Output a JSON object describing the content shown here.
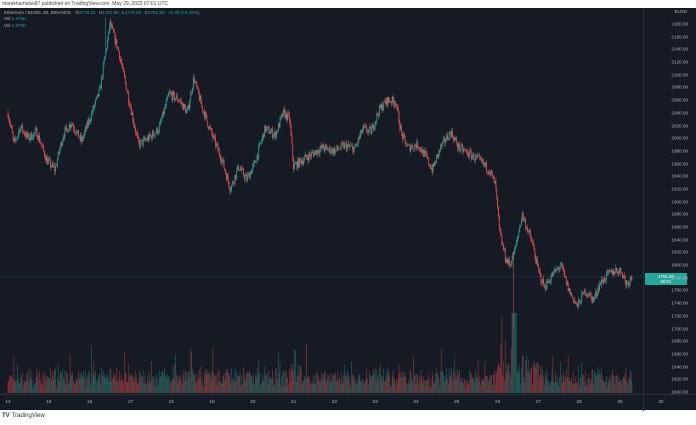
{
  "attribution": "marekhamwan87 published on TradingView.com, May 29, 2022 07:01 UTC",
  "legend": {
    "symbol": "Ethereum / BUSD, 30, BINANCE",
    "open_label": "O",
    "open": "1778.31",
    "high_label": "H",
    "high": "1781.50",
    "low_label": "L",
    "low": "1776.63",
    "close_label": "C",
    "close": "1781.50",
    "change": "+1.30 (+0.15%)",
    "vol1_label": "Vol",
    "vol1": "1.376K",
    "vol2_label": "Vol",
    "vol2": "1.376K"
  },
  "price_axis": {
    "currency": "BUSD",
    "current_price": "1781.50",
    "countdown": "00:01"
  },
  "footer": {
    "logo_mark": "TV",
    "logo_text": "TradingView"
  },
  "colors": {
    "background": "#161a25",
    "up": "#26a69a",
    "down": "#ef5350",
    "text": "#b2b5be",
    "grid": "#2a2e39"
  },
  "chart_data": {
    "type": "candlestick",
    "title": "Ethereum / BUSD, 30, BINANCE",
    "xlabel": "Day (May 2022)",
    "ylabel": "BUSD",
    "interval": "30m",
    "x_ticks": [
      "14",
      "15",
      "16",
      "17",
      "18",
      "19",
      "20",
      "21",
      "22",
      "23",
      "24",
      "25",
      "26",
      "27",
      "28",
      "29",
      "30"
    ],
    "y_ticks": [
      2180,
      2160,
      2140,
      2120,
      2100,
      2080,
      2060,
      2040,
      2020,
      2000,
      1980,
      1960,
      1940,
      1920,
      1900,
      1880,
      1860,
      1840,
      1820,
      1800,
      1780,
      1760,
      1740,
      1720,
      1700,
      1680,
      1660,
      1640,
      1620,
      1600
    ],
    "ylim": [
      1592,
      2196
    ],
    "last_price": 1781.5,
    "close_path_keypoints": [
      {
        "day": 14.0,
        "price": 2040
      },
      {
        "day": 14.15,
        "price": 1990
      },
      {
        "day": 14.3,
        "price": 2018
      },
      {
        "day": 14.5,
        "price": 2000
      },
      {
        "day": 14.7,
        "price": 2010
      },
      {
        "day": 14.95,
        "price": 1965
      },
      {
        "day": 15.15,
        "price": 1950
      },
      {
        "day": 15.35,
        "price": 2005
      },
      {
        "day": 15.55,
        "price": 2025
      },
      {
        "day": 15.8,
        "price": 1995
      },
      {
        "day": 16.0,
        "price": 2030
      },
      {
        "day": 16.25,
        "price": 2075
      },
      {
        "day": 16.5,
        "price": 2180
      },
      {
        "day": 16.7,
        "price": 2140
      },
      {
        "day": 16.95,
        "price": 2065
      },
      {
        "day": 17.2,
        "price": 1990
      },
      {
        "day": 17.45,
        "price": 2000
      },
      {
        "day": 17.7,
        "price": 2015
      },
      {
        "day": 17.95,
        "price": 2070
      },
      {
        "day": 18.2,
        "price": 2060
      },
      {
        "day": 18.4,
        "price": 2040
      },
      {
        "day": 18.55,
        "price": 2095
      },
      {
        "day": 18.75,
        "price": 2050
      },
      {
        "day": 19.0,
        "price": 2005
      },
      {
        "day": 19.25,
        "price": 1965
      },
      {
        "day": 19.45,
        "price": 1920
      },
      {
        "day": 19.65,
        "price": 1955
      },
      {
        "day": 19.85,
        "price": 1935
      },
      {
        "day": 20.05,
        "price": 1960
      },
      {
        "day": 20.3,
        "price": 2015
      },
      {
        "day": 20.55,
        "price": 2005
      },
      {
        "day": 20.75,
        "price": 2040
      },
      {
        "day": 20.9,
        "price": 2030
      },
      {
        "day": 21.0,
        "price": 1955
      },
      {
        "day": 21.2,
        "price": 1965
      },
      {
        "day": 21.45,
        "price": 1975
      },
      {
        "day": 21.7,
        "price": 1985
      },
      {
        "day": 22.0,
        "price": 1980
      },
      {
        "day": 22.25,
        "price": 1988
      },
      {
        "day": 22.5,
        "price": 1983
      },
      {
        "day": 22.7,
        "price": 2015
      },
      {
        "day": 22.9,
        "price": 2010
      },
      {
        "day": 23.1,
        "price": 2045
      },
      {
        "day": 23.3,
        "price": 2060
      },
      {
        "day": 23.5,
        "price": 2058
      },
      {
        "day": 23.65,
        "price": 2005
      },
      {
        "day": 23.8,
        "price": 1985
      },
      {
        "day": 24.05,
        "price": 1990
      },
      {
        "day": 24.25,
        "price": 1970
      },
      {
        "day": 24.4,
        "price": 1950
      },
      {
        "day": 24.6,
        "price": 1985
      },
      {
        "day": 24.85,
        "price": 2010
      },
      {
        "day": 25.05,
        "price": 1985
      },
      {
        "day": 25.3,
        "price": 1975
      },
      {
        "day": 25.55,
        "price": 1965
      },
      {
        "day": 25.8,
        "price": 1950
      },
      {
        "day": 25.95,
        "price": 1925
      },
      {
        "day": 26.05,
        "price": 1850
      },
      {
        "day": 26.2,
        "price": 1810
      },
      {
        "day": 26.3,
        "price": 1800
      },
      {
        "day": 26.45,
        "price": 1830
      },
      {
        "day": 26.6,
        "price": 1880
      },
      {
        "day": 26.85,
        "price": 1835
      },
      {
        "day": 27.0,
        "price": 1790
      },
      {
        "day": 27.15,
        "price": 1765
      },
      {
        "day": 27.35,
        "price": 1785
      },
      {
        "day": 27.55,
        "price": 1800
      },
      {
        "day": 27.75,
        "price": 1760
      },
      {
        "day": 27.95,
        "price": 1735
      },
      {
        "day": 28.15,
        "price": 1760
      },
      {
        "day": 28.35,
        "price": 1745
      },
      {
        "day": 28.5,
        "price": 1770
      },
      {
        "day": 28.7,
        "price": 1785
      },
      {
        "day": 28.9,
        "price": 1792
      },
      {
        "day": 29.05,
        "price": 1790
      },
      {
        "day": 29.15,
        "price": 1770
      },
      {
        "day": 29.3,
        "price": 1781.5
      }
    ],
    "notable_extremes": [
      {
        "day": 16.4,
        "price": 2190,
        "note": "wick high"
      },
      {
        "day": 26.4,
        "price": 1700,
        "note": "wick low"
      }
    ],
    "volume_pane": {
      "series": "Vol",
      "peak_day": 26.4,
      "last": "1.376K"
    }
  }
}
